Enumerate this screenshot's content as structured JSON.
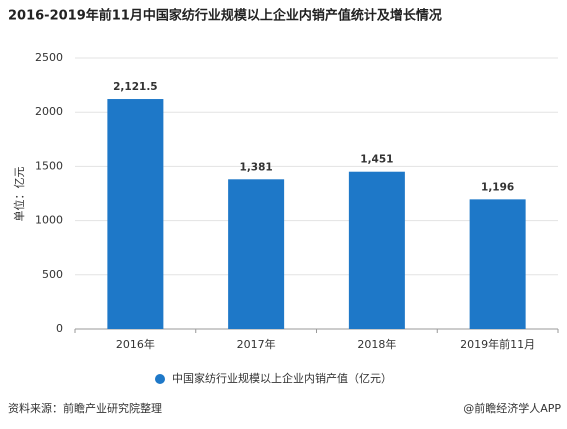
{
  "chart_data": {
    "type": "bar",
    "title": "2016-2019年前11月中国家纺行业规模以上企业内销产值统计及增长情况",
    "y_label": "单位：亿元",
    "categories": [
      "2016年",
      "2017年",
      "2018年",
      "2019年前11月"
    ],
    "series": [
      {
        "name": "中国家纺行业规模以上企业内销产值（亿元）",
        "color": "#1e78c8",
        "values": [
          2121.5,
          1381,
          1451,
          1196
        ],
        "value_labels": [
          "2,121.5",
          "1,381",
          "1,451",
          "1,196"
        ]
      }
    ],
    "ylim": [
      0,
      2500
    ],
    "yticks": [
      0,
      500,
      1000,
      1500,
      2000,
      2500
    ],
    "grid": true,
    "source": "资料来源：前瞻产业研究院整理",
    "credit": "@前瞻经济学人APP"
  }
}
